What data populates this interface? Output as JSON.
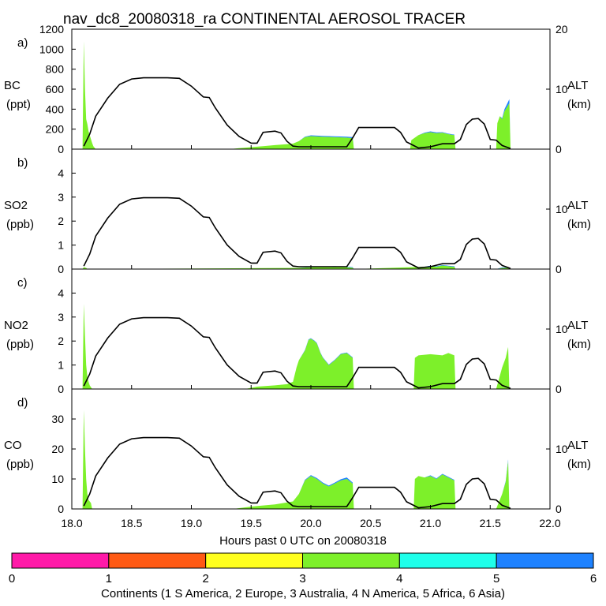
{
  "title": "nav_dc8_20080318_ra CONTINENTAL AEROSOL TRACER",
  "xlabel": "Hours past 0 UTC on 20080318",
  "xlim": [
    18.0,
    22.0
  ],
  "x_ticks": [
    "18.0",
    "18.5",
    "19.0",
    "19.5",
    "20.0",
    "20.5",
    "21.0",
    "21.5",
    "22.0"
  ],
  "alt_axis": {
    "label": "ALT",
    "unit": "(km)",
    "ylim": [
      0,
      20
    ],
    "ticks": [
      "0",
      "10",
      "20"
    ]
  },
  "colors": {
    "S America": "#ff1aa8",
    "Europe": "#ff5a14",
    "Australia": "#ffff1e",
    "N America": "#7df02a",
    "Africa": "#1effea",
    "Asia": "#1e82ff",
    "axis": "#000000"
  },
  "colorbar": {
    "label": "Continents (1 S America, 2 Europe, 3 Australia, 4 N America, 5 Africa, 6 Asia)",
    "ticks": [
      "0",
      "1",
      "2",
      "3",
      "4",
      "5",
      "6"
    ],
    "segments": [
      {
        "name": "S America",
        "color": "#ff1aa8"
      },
      {
        "name": "Europe",
        "color": "#ff5a14"
      },
      {
        "name": "Australia",
        "color": "#ffff1e"
      },
      {
        "name": "N America",
        "color": "#7df02a"
      },
      {
        "name": "Africa",
        "color": "#1effea"
      },
      {
        "name": "Asia",
        "color": "#1e82ff"
      }
    ]
  },
  "chart_data": {
    "type": "area",
    "stacked_by": "continent source contribution",
    "altitude_km": {
      "x": [
        18.1,
        18.15,
        18.2,
        18.3,
        18.4,
        18.5,
        18.6,
        18.7,
        18.8,
        18.9,
        19.0,
        19.1,
        19.15,
        19.2,
        19.3,
        19.4,
        19.5,
        19.55,
        19.6,
        19.7,
        19.75,
        19.8,
        19.85,
        19.9,
        20.0,
        20.1,
        20.2,
        20.3,
        20.35,
        20.4,
        20.5,
        20.6,
        20.7,
        20.75,
        20.8,
        20.9,
        21.0,
        21.1,
        21.2,
        21.25,
        21.3,
        21.35,
        21.4,
        21.45,
        21.5,
        21.55,
        21.6,
        21.67
      ],
      "y": [
        0.5,
        2.5,
        5.5,
        8.5,
        10.8,
        11.7,
        11.9,
        11.9,
        11.9,
        11.8,
        10.5,
        8.7,
        8.6,
        6.9,
        4.0,
        2.1,
        1.0,
        1.0,
        2.8,
        3.0,
        2.7,
        1.3,
        0.5,
        0.4,
        0.4,
        0.4,
        0.4,
        0.4,
        1.9,
        3.6,
        3.6,
        3.6,
        3.6,
        2.8,
        1.2,
        0.2,
        0.4,
        0.9,
        0.9,
        1.6,
        4.1,
        5.0,
        5.1,
        4.2,
        1.6,
        1.5,
        0.6,
        0.1
      ]
    },
    "panels": [
      {
        "label": "a)",
        "species": "BC",
        "unit": "(ppt)",
        "ylim": [
          0,
          1200
        ],
        "y_ticks": [
          "0",
          "200",
          "400",
          "600",
          "800",
          "1000",
          "1200"
        ],
        "x": [
          18.09,
          18.1,
          18.11,
          18.12,
          18.13,
          18.14,
          18.15,
          18.16,
          18.17,
          18.18,
          18.2,
          19.32,
          19.4,
          19.5,
          19.6,
          19.7,
          19.8,
          19.85,
          19.9,
          19.95,
          20.0,
          20.1,
          20.2,
          20.3,
          20.35,
          20.36,
          20.83,
          20.84,
          20.9,
          20.95,
          21.0,
          21.05,
          21.1,
          21.15,
          21.2,
          21.21,
          21.55,
          21.56,
          21.58,
          21.6,
          21.62,
          21.64,
          21.66,
          21.67
        ],
        "series": [
          {
            "name": "N America",
            "color": "#7df02a",
            "values": [
              0,
              1080,
              600,
              300,
              250,
              180,
              140,
              100,
              60,
              30,
              0,
              0,
              10,
              20,
              30,
              40,
              50,
              55,
              80,
              120,
              130,
              125,
              120,
              115,
              110,
              0,
              0,
              90,
              140,
              160,
              170,
              160,
              165,
              150,
              140,
              0,
              0,
              260,
              330,
              300,
              380,
              420,
              460,
              0
            ]
          },
          {
            "name": "Asia",
            "color": "#1e82ff",
            "values": [
              0,
              0,
              0,
              0,
              0,
              0,
              0,
              0,
              0,
              0,
              0,
              0,
              0,
              0,
              0,
              0,
              0,
              0,
              0,
              5,
              8,
              8,
              8,
              10,
              10,
              0,
              0,
              0,
              0,
              5,
              8,
              8,
              5,
              5,
              5,
              0,
              0,
              0,
              0,
              10,
              20,
              30,
              40,
              0
            ]
          }
        ]
      },
      {
        "label": "b)",
        "species": "SO2",
        "unit": "(ppb)",
        "ylim": [
          0,
          5
        ],
        "y_ticks": [
          "0",
          "1",
          "2",
          "3",
          "4"
        ],
        "x": [
          18.09,
          18.1,
          18.12,
          18.13,
          19.9,
          20.0,
          20.1,
          20.2,
          20.3,
          20.35,
          20.36,
          20.95,
          21.0,
          21.05,
          21.1,
          21.15,
          21.2,
          21.21,
          21.55,
          21.6,
          21.65,
          21.66
        ],
        "series": [
          {
            "name": "N America",
            "color": "#7df02a",
            "values": [
              0,
              0.08,
              0.05,
              0,
              0.05,
              0.08,
              0.09,
              0.1,
              0.08,
              0.06,
              0,
              0.1,
              0.12,
              0.1,
              0.15,
              0.12,
              0.1,
              0,
              0,
              0.05,
              0.06,
              0
            ]
          },
          {
            "name": "Asia",
            "color": "#1e82ff",
            "values": [
              0,
              0,
              0,
              0,
              0,
              0.02,
              0.02,
              0.02,
              0.02,
              0.02,
              0,
              0,
              0.02,
              0.02,
              0.02,
              0.02,
              0.02,
              0,
              0,
              0.02,
              0.02,
              0
            ]
          }
        ]
      },
      {
        "label": "c)",
        "species": "NO2",
        "unit": "(ppb)",
        "ylim": [
          0,
          5
        ],
        "y_ticks": [
          "0",
          "1",
          "2",
          "3",
          "4"
        ],
        "x": [
          18.09,
          18.1,
          18.11,
          18.12,
          18.13,
          18.14,
          18.15,
          18.17,
          19.45,
          19.55,
          19.7,
          19.8,
          19.85,
          19.88,
          19.9,
          19.95,
          19.98,
          20.0,
          20.03,
          20.05,
          20.08,
          20.1,
          20.15,
          20.2,
          20.25,
          20.3,
          20.35,
          20.36,
          20.86,
          20.87,
          20.9,
          21.0,
          21.1,
          21.15,
          21.2,
          21.21,
          21.55,
          21.6,
          21.63,
          21.65,
          21.66
        ],
        "series": [
          {
            "name": "N America",
            "color": "#7df02a",
            "values": [
              0,
              3.55,
              2.2,
              1.0,
              0.5,
              0.3,
              0.15,
              0,
              0,
              0.1,
              0.15,
              0.2,
              0.3,
              0.9,
              1.2,
              1.6,
              2.05,
              2.1,
              2.0,
              1.9,
              1.5,
              1.3,
              1.0,
              1.2,
              1.45,
              1.5,
              1.3,
              0,
              0,
              1.3,
              1.4,
              1.45,
              1.4,
              1.5,
              1.4,
              0,
              0,
              0.9,
              1.3,
              1.75,
              0
            ]
          },
          {
            "name": "Asia",
            "color": "#1e82ff",
            "values": [
              0,
              0,
              0,
              0,
              0,
              0,
              0,
              0,
              0,
              0,
              0,
              0,
              0,
              0,
              0,
              0.02,
              0.02,
              0.02,
              0.02,
              0.02,
              0.02,
              0.02,
              0.02,
              0.02,
              0.02,
              0.02,
              0.02,
              0,
              0,
              0,
              0,
              0,
              0,
              0,
              0,
              0,
              0,
              0,
              0,
              0,
              0
            ]
          }
        ]
      },
      {
        "label": "d)",
        "species": "CO",
        "unit": "(ppb)",
        "ylim": [
          0,
          40
        ],
        "y_ticks": [
          "0",
          "10",
          "20",
          "30"
        ],
        "x": [
          18.09,
          18.1,
          18.11,
          18.12,
          18.13,
          18.14,
          18.16,
          18.17,
          19.35,
          19.5,
          19.7,
          19.85,
          19.9,
          19.95,
          20.0,
          20.05,
          20.1,
          20.15,
          20.2,
          20.25,
          20.3,
          20.35,
          20.36,
          20.86,
          20.87,
          20.9,
          20.95,
          21.0,
          21.05,
          21.1,
          21.15,
          21.2,
          21.21,
          21.55,
          21.6,
          21.63,
          21.65,
          21.66
        ],
        "series": [
          {
            "name": "N America",
            "color": "#7df02a",
            "values": [
              0,
              33,
              20,
              10,
              5,
              3,
              2,
              0,
              0,
              0.8,
              1.5,
              2.5,
              5,
              9.5,
              11,
              10,
              8.5,
              7.5,
              8.5,
              9.5,
              10,
              8.5,
              0,
              0,
              10,
              11,
              10.5,
              11,
              10,
              11.5,
              10.5,
              9.5,
              0,
              0,
              5,
              9,
              16,
              0
            ]
          },
          {
            "name": "Asia",
            "color": "#1e82ff",
            "values": [
              0,
              0,
              0,
              0,
              0,
              0,
              0,
              0,
              0,
              0,
              0,
              0,
              0,
              0.2,
              0.3,
              0.3,
              0.3,
              0.3,
              0.3,
              0.4,
              0.5,
              0.3,
              0,
              0,
              0,
              0,
              0,
              0.2,
              0.2,
              0.2,
              0.2,
              0.2,
              0,
              0,
              0,
              0.3,
              0.5,
              0
            ]
          }
        ]
      }
    ]
  }
}
